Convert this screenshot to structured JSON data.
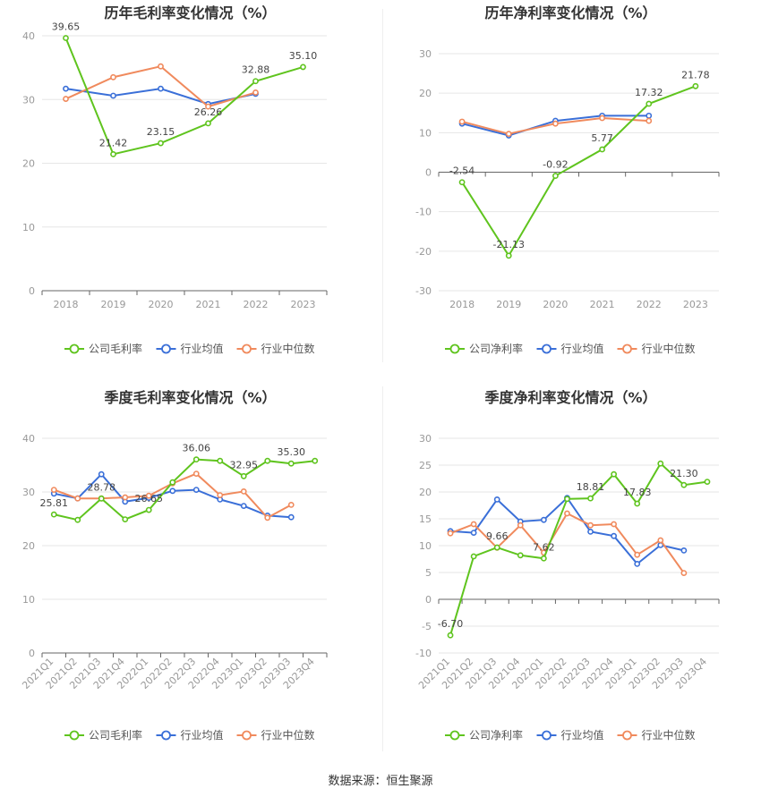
{
  "footer": {
    "source": "数据来源：恒生聚源"
  },
  "colors": {
    "company": "#5fc41e",
    "avg": "#3a6fd8",
    "median": "#f08a5d",
    "grid": "#e6e6e6",
    "axis": "#666666",
    "tick": "#999999",
    "title": "#333333"
  },
  "chart_data": [
    {
      "type": "line",
      "title": "历年毛利率变化情况（%）",
      "categories": [
        "2018",
        "2019",
        "2020",
        "2021",
        "2022",
        "2023"
      ],
      "ylim": [
        0,
        40
      ],
      "yticks": [
        0,
        10,
        20,
        30,
        40
      ],
      "rotate_labels": false,
      "legend": "bottom",
      "series": [
        {
          "name": "公司毛利率",
          "key": "company",
          "values": [
            39.65,
            21.42,
            23.15,
            26.26,
            32.88,
            35.1
          ],
          "labels": [
            "39.65",
            "21.42",
            "23.15",
            "26.26",
            "32.88",
            "35.10"
          ],
          "label_side": [
            "up",
            "up",
            "up",
            "up",
            "up",
            "up"
          ]
        },
        {
          "name": "行业均值",
          "key": "avg",
          "values": [
            31.7,
            30.6,
            31.7,
            29.3,
            30.9,
            null
          ]
        },
        {
          "name": "行业中位数",
          "key": "median",
          "values": [
            30.1,
            33.5,
            35.2,
            28.9,
            31.1,
            null
          ]
        }
      ]
    },
    {
      "type": "line",
      "title": "历年净利率变化情况（%）",
      "categories": [
        "2018",
        "2019",
        "2020",
        "2021",
        "2022",
        "2023"
      ],
      "ylim": [
        -30,
        30
      ],
      "yticks": [
        -30,
        -20,
        -10,
        0,
        10,
        20,
        30
      ],
      "rotate_labels": false,
      "legend": "bottom",
      "series": [
        {
          "name": "公司净利率",
          "key": "company",
          "values": [
            -2.54,
            -21.13,
            -0.92,
            5.77,
            17.32,
            21.78
          ],
          "labels": [
            "-2.54",
            "-21.13",
            "-0.92",
            "5.77",
            "17.32",
            "21.78"
          ],
          "label_side": [
            "up",
            "up",
            "up",
            "up",
            "up",
            "up"
          ]
        },
        {
          "name": "行业均值",
          "key": "avg",
          "values": [
            12.3,
            9.3,
            13.0,
            14.3,
            14.3,
            null
          ]
        },
        {
          "name": "行业中位数",
          "key": "median",
          "values": [
            12.8,
            9.7,
            12.3,
            13.7,
            13.0,
            null
          ]
        }
      ]
    },
    {
      "type": "line",
      "title": "季度毛利率变化情况（%）",
      "categories": [
        "2021Q1",
        "2021Q2",
        "2021Q3",
        "2021Q4",
        "2022Q1",
        "2022Q2",
        "2022Q3",
        "2022Q4",
        "2023Q1",
        "2023Q2",
        "2023Q3",
        "2023Q4"
      ],
      "ylim": [
        0,
        40
      ],
      "yticks": [
        0,
        10,
        20,
        30,
        40
      ],
      "rotate_labels": true,
      "legend": "bottom",
      "series": [
        {
          "name": "公司毛利率",
          "key": "company",
          "values": [
            25.81,
            24.8,
            28.78,
            24.9,
            26.65,
            31.8,
            36.06,
            35.8,
            32.95,
            35.8,
            35.3,
            35.8
          ],
          "labels": [
            "25.81",
            "",
            "28.78",
            "",
            "26.65",
            "",
            "36.06",
            "",
            "32.95",
            "",
            "35.30",
            ""
          ],
          "label_side": [
            "up",
            "up",
            "up",
            "up",
            "up",
            "up",
            "up",
            "up",
            "up",
            "up",
            "up",
            "up"
          ]
        },
        {
          "name": "行业均值",
          "key": "avg",
          "values": [
            29.7,
            28.8,
            33.3,
            28.2,
            28.9,
            30.2,
            30.4,
            28.6,
            27.4,
            25.6,
            25.3,
            null
          ]
        },
        {
          "name": "行业中位数",
          "key": "median",
          "values": [
            30.4,
            28.8,
            28.8,
            29.0,
            29.3,
            31.6,
            33.4,
            29.4,
            30.1,
            25.2,
            27.6,
            null
          ]
        }
      ]
    },
    {
      "type": "line",
      "title": "季度净利率变化情况（%）",
      "categories": [
        "2021Q1",
        "2021Q2",
        "2021Q3",
        "2021Q4",
        "2022Q1",
        "2022Q2",
        "2022Q3",
        "2022Q4",
        "2023Q1",
        "2023Q2",
        "2023Q3",
        "2023Q4"
      ],
      "ylim": [
        -10,
        30
      ],
      "yticks": [
        -10,
        -5,
        0,
        5,
        10,
        15,
        20,
        25,
        30
      ],
      "rotate_labels": true,
      "legend": "bottom",
      "series": [
        {
          "name": "公司净利率",
          "key": "company",
          "values": [
            -6.7,
            8.0,
            9.66,
            8.2,
            7.62,
            18.7,
            18.81,
            23.3,
            17.83,
            25.3,
            21.3,
            21.9
          ],
          "labels": [
            "-6.70",
            "",
            "9.66",
            "",
            "7.62",
            "",
            "18.81",
            "",
            "17.83",
            "",
            "21.30",
            ""
          ],
          "label_side": [
            "up",
            "up",
            "up",
            "up",
            "up",
            "up",
            "up",
            "up",
            "up",
            "up",
            "up",
            "up"
          ]
        },
        {
          "name": "行业均值",
          "key": "avg",
          "values": [
            12.7,
            12.4,
            18.6,
            14.5,
            14.8,
            18.9,
            12.6,
            11.8,
            6.6,
            10.1,
            9.1,
            null
          ]
        },
        {
          "name": "行业中位数",
          "key": "median",
          "values": [
            12.3,
            14.0,
            9.6,
            13.8,
            8.7,
            16.0,
            13.8,
            14.0,
            8.3,
            11.0,
            4.9,
            null
          ]
        }
      ]
    }
  ]
}
